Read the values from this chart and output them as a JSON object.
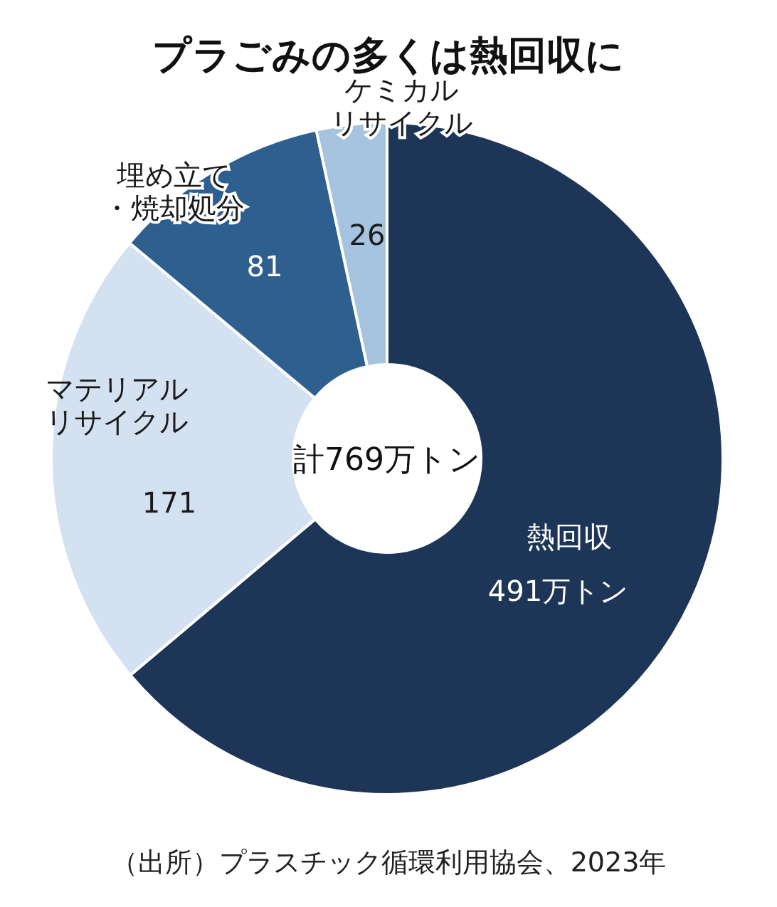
{
  "chart_data": {
    "type": "donut",
    "title": "プラごみの多くは熱回収に",
    "categories": [
      "熱回収",
      "マテリアルリサイクル",
      "埋め立て・焼却処分",
      "ケミカルリサイクル"
    ],
    "values": [
      491,
      171,
      81,
      26
    ],
    "value_labels": [
      "491万トン",
      "171",
      "81",
      "26"
    ],
    "colors": [
      "#1d3557",
      "#d3e1f0",
      "#2f5f8f",
      "#a6c3df"
    ],
    "annotations": [
      "計769万トン",
      "（出所）プラスチック循環利用協会、2023年"
    ]
  }
}
